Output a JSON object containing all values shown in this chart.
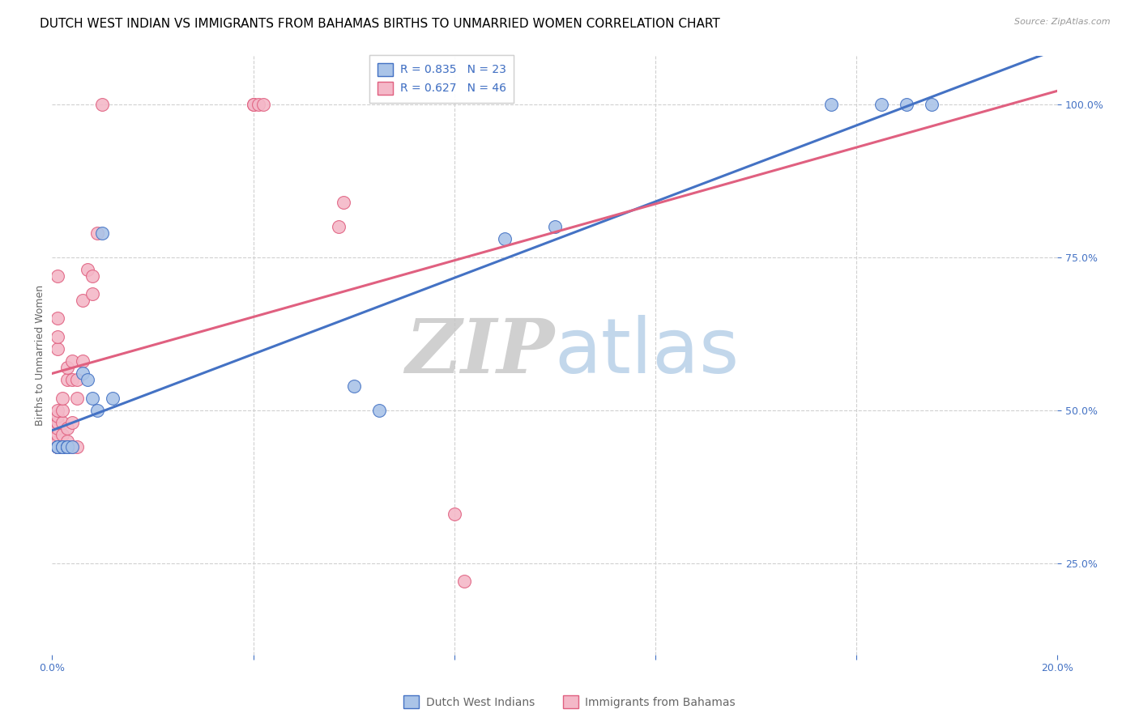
{
  "title": "DUTCH WEST INDIAN VS IMMIGRANTS FROM BAHAMAS BIRTHS TO UNMARRIED WOMEN CORRELATION CHART",
  "source": "Source: ZipAtlas.com",
  "ylabel": "Births to Unmarried Women",
  "x_min": 0.0,
  "x_max": 0.2,
  "y_min": 0.0,
  "y_max": 1.1,
  "blue_scatter_x": [
    0.001,
    0.001,
    0.001,
    0.002,
    0.002,
    0.003,
    0.003,
    0.003,
    0.004,
    0.006,
    0.007,
    0.008,
    0.009,
    0.01,
    0.012,
    0.06,
    0.065,
    0.09,
    0.1,
    0.155,
    0.165,
    0.17,
    0.175
  ],
  "blue_scatter_y": [
    0.44,
    0.44,
    0.44,
    0.44,
    0.44,
    0.44,
    0.44,
    0.44,
    0.44,
    0.56,
    0.55,
    0.52,
    0.5,
    0.79,
    0.52,
    0.54,
    0.5,
    0.78,
    0.8,
    1.0,
    1.0,
    1.0,
    1.0
  ],
  "pink_scatter_x": [
    0.001,
    0.001,
    0.001,
    0.001,
    0.001,
    0.001,
    0.001,
    0.001,
    0.001,
    0.001,
    0.001,
    0.001,
    0.001,
    0.001,
    0.001,
    0.002,
    0.002,
    0.002,
    0.002,
    0.002,
    0.003,
    0.003,
    0.003,
    0.003,
    0.004,
    0.004,
    0.004,
    0.004,
    0.005,
    0.005,
    0.005,
    0.006,
    0.006,
    0.007,
    0.008,
    0.008,
    0.009,
    0.01,
    0.04,
    0.04,
    0.041,
    0.042,
    0.057,
    0.058,
    0.08,
    0.082
  ],
  "pink_scatter_y": [
    0.44,
    0.44,
    0.44,
    0.44,
    0.45,
    0.46,
    0.47,
    0.48,
    0.48,
    0.49,
    0.5,
    0.6,
    0.62,
    0.65,
    0.72,
    0.44,
    0.46,
    0.48,
    0.5,
    0.52,
    0.45,
    0.47,
    0.55,
    0.57,
    0.44,
    0.48,
    0.55,
    0.58,
    0.44,
    0.52,
    0.55,
    0.58,
    0.68,
    0.73,
    0.69,
    0.72,
    0.79,
    1.0,
    1.0,
    1.0,
    1.0,
    1.0,
    0.8,
    0.84,
    0.33,
    0.22
  ],
  "blue_R": 0.835,
  "blue_N": 23,
  "pink_R": 0.627,
  "pink_N": 46,
  "blue_color": "#aac4e8",
  "blue_line_color": "#4472c4",
  "pink_color": "#f4b8c8",
  "pink_line_color": "#e06080",
  "legend_label_blue": "Dutch West Indians",
  "legend_label_pink": "Immigrants from Bahamas",
  "watermark_zip": "ZIP",
  "watermark_atlas": "atlas",
  "title_fontsize": 11,
  "label_fontsize": 9,
  "tick_fontsize": 9,
  "source_fontsize": 8
}
